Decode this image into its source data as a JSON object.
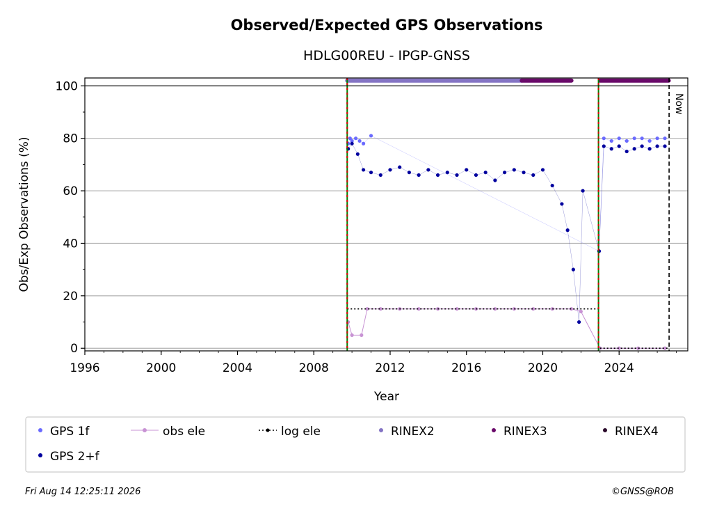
{
  "chart_data": {
    "type": "scatter",
    "title": "Observed/Expected GPS Observations",
    "subtitle": "HDLG00REU - IPGP-GNSS",
    "xlabel": "Year",
    "ylabel": "Obs/Exp Observations (%)",
    "xlim": [
      1996,
      2027.6
    ],
    "ylim": [
      -1,
      103
    ],
    "x_ticks": [
      1996,
      2000,
      2004,
      2008,
      2012,
      2016,
      2020,
      2024
    ],
    "y_ticks": [
      0,
      20,
      40,
      60,
      80,
      100
    ],
    "grid": "horizontal",
    "now_label": "Now",
    "now_x": 2026.62,
    "vertical_markers": [
      2009.75,
      2022.92
    ],
    "legend_position": "bottom",
    "legend": [
      {
        "name": "GPS 1f",
        "marker": "dot",
        "color": "#6a6aff"
      },
      {
        "name": "obs ele",
        "marker": "dot-line",
        "color": "#c893d4"
      },
      {
        "name": "log ele",
        "marker": "dotted-line",
        "color": "#000000"
      },
      {
        "name": "RINEX2",
        "marker": "dot",
        "color": "#8474c4"
      },
      {
        "name": "RINEX3",
        "marker": "dot",
        "color": "#6a0a6a"
      },
      {
        "name": "RINEX4",
        "marker": "dot",
        "color": "#2a0a2a"
      },
      {
        "name": "GPS 2+f",
        "marker": "dot",
        "color": "#00009e"
      }
    ],
    "series": [
      {
        "name": "GPS 1f",
        "color": "#6a6aff",
        "x": [
          2009.8,
          2009.9,
          2010.0,
          2010.2,
          2010.4,
          2010.6,
          2011.0,
          2022.95,
          2023.2,
          2023.6,
          2024.0,
          2024.4,
          2024.8,
          2025.2,
          2025.6,
          2026.0,
          2026.4
        ],
        "y": [
          78,
          80,
          79,
          80,
          79,
          78,
          81,
          37,
          80,
          79,
          80,
          79,
          80,
          80,
          79,
          80,
          80
        ]
      },
      {
        "name": "GPS 2+f",
        "color": "#00009e",
        "x": [
          2009.8,
          2010.0,
          2010.3,
          2010.6,
          2011.0,
          2011.5,
          2012.0,
          2012.5,
          2013.0,
          2013.5,
          2014.0,
          2014.5,
          2015.0,
          2015.5,
          2016.0,
          2016.5,
          2017.0,
          2017.5,
          2018.0,
          2018.5,
          2019.0,
          2019.5,
          2020.0,
          2020.5,
          2021.0,
          2021.3,
          2021.6,
          2021.9,
          2022.1,
          2022.95,
          2023.2,
          2023.6,
          2024.0,
          2024.4,
          2024.8,
          2025.2,
          2025.6,
          2026.0,
          2026.4
        ],
        "y": [
          76,
          78,
          74,
          68,
          67,
          66,
          68,
          69,
          67,
          66,
          68,
          66,
          67,
          66,
          68,
          66,
          67,
          64,
          67,
          68,
          67,
          66,
          68,
          62,
          55,
          45,
          30,
          10,
          60,
          37,
          77,
          76,
          77,
          75,
          76,
          77,
          76,
          77,
          77
        ]
      },
      {
        "name": "obs ele",
        "color": "#c893d4",
        "x": [
          2009.8,
          2010.0,
          2010.5,
          2010.8,
          2011.5,
          2012.5,
          2013.5,
          2014.5,
          2015.5,
          2016.5,
          2017.5,
          2018.5,
          2019.5,
          2020.5,
          2021.5,
          2022.0,
          2023.0,
          2024.0,
          2025.0,
          2026.4
        ],
        "y": [
          10,
          5,
          5,
          15,
          15,
          15,
          15,
          15,
          15,
          15,
          15,
          15,
          15,
          15,
          15,
          14,
          0,
          0,
          0,
          0
        ]
      },
      {
        "name": "log ele",
        "color": "#000000",
        "x": [
          2009.75,
          2022.92,
          2022.92,
          2026.62
        ],
        "y": [
          15,
          15,
          0,
          0
        ]
      },
      {
        "name": "RINEX2",
        "color": "#8474c4",
        "x": [
          2009.75,
          2018.9
        ],
        "y": [
          102,
          102
        ]
      },
      {
        "name": "RINEX3",
        "color": "#6a0a6a",
        "x": [
          2018.9,
          2021.5,
          2023.0,
          2026.6
        ],
        "y": [
          102,
          102,
          102,
          102
        ]
      }
    ]
  },
  "footer": {
    "timestamp": "Fri Aug 14 12:25:11 2026",
    "copyright": "©GNSS@ROB"
  }
}
